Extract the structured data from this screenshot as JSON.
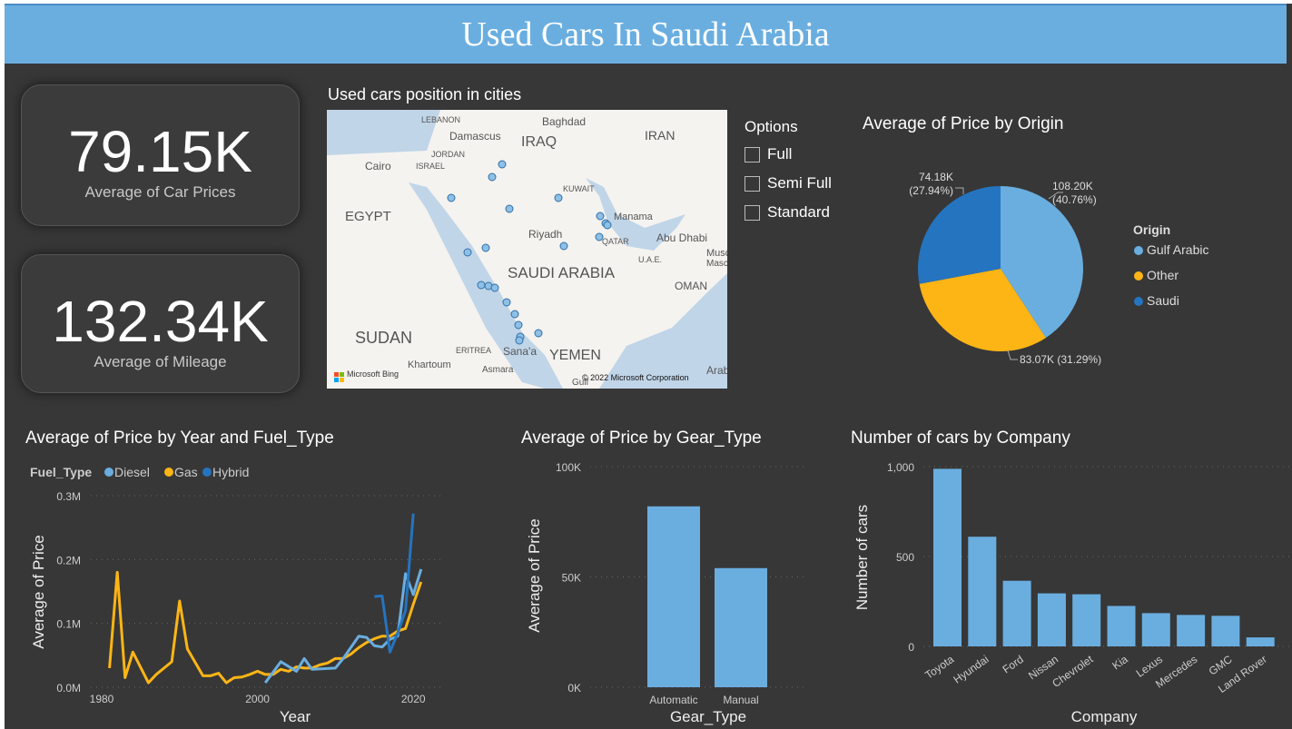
{
  "title": "Used Cars In Saudi Arabia",
  "kpis": [
    {
      "value": "79.15K",
      "label": "Average of Car Prices"
    },
    {
      "value": "132.34K",
      "label": "Average of Mileage"
    }
  ],
  "map": {
    "title": "Used cars position in cities",
    "labels": [
      "LEBANON",
      "Damascus",
      "Baghdad",
      "IRAQ",
      "IRAN",
      "JORDAN",
      "ISRAEL",
      "Cairo",
      "EGYPT",
      "KUWAIT",
      "Manama",
      "Riyadh",
      "QATAR",
      "Abu Dhabi",
      "U.A.E.",
      "Musc",
      "Masca",
      "SAUDI ARABIA",
      "OMAN",
      "SUDAN",
      "ERITREA",
      "Sana'a",
      "YEMEN",
      "Khartoum",
      "Asmara",
      "Arab",
      "Gulf"
    ],
    "attribution": "Microsoft Bing",
    "copyright": "© 2022 Microsoft Corporation"
  },
  "options": {
    "title": "Options",
    "items": [
      "Full",
      "Semi Full",
      "Standard"
    ]
  },
  "pie": {
    "title": "Average of Price by Origin",
    "legend_title": "Origin",
    "slices": [
      {
        "name": "Gulf Arabic",
        "value": 108.2,
        "label": "108.20K",
        "pct": "(40.76%)",
        "color": "#6aaee0"
      },
      {
        "name": "Other",
        "value": 83.07,
        "label": "83.07K (31.29%)",
        "pct": "",
        "color": "#fdb515"
      },
      {
        "name": "Saudi",
        "value": 74.18,
        "label": "74.18K",
        "pct": "(27.94%)",
        "color": "#2574bf"
      }
    ]
  },
  "chart_data": [
    {
      "type": "line",
      "title": "Average of Price by Year and Fuel_Type",
      "legend_title": "Fuel_Type",
      "xlabel": "Year",
      "ylabel": "Average of Price",
      "xlim": [
        1978,
        2023
      ],
      "ylim": [
        0,
        0.3
      ],
      "xticks": [
        "1980",
        "2000",
        "2020"
      ],
      "yticks": [
        "0.0M",
        "0.1M",
        "0.2M",
        "0.3M"
      ],
      "series": [
        {
          "name": "Diesel",
          "color": "#6aaee0",
          "points": [
            [
              2001,
              0.007
            ],
            [
              2003,
              0.04
            ],
            [
              2005,
              0.025
            ],
            [
              2006,
              0.045
            ],
            [
              2007,
              0.028
            ],
            [
              2010,
              0.03
            ],
            [
              2011,
              0.045
            ],
            [
              2013,
              0.08
            ],
            [
              2014,
              0.078
            ],
            [
              2015,
              0.065
            ],
            [
              2016,
              0.063
            ],
            [
              2017,
              0.075
            ],
            [
              2018,
              0.08
            ],
            [
              2019,
              0.178
            ],
            [
              2020,
              0.145
            ],
            [
              2021,
              0.185
            ]
          ]
        },
        {
          "name": "Gas",
          "color": "#fdb515",
          "points": [
            [
              1981,
              0.03
            ],
            [
              1982,
              0.18
            ],
            [
              1983,
              0.015
            ],
            [
              1984,
              0.055
            ],
            [
              1986,
              0.007
            ],
            [
              1987,
              0.02
            ],
            [
              1989,
              0.04
            ],
            [
              1990,
              0.135
            ],
            [
              1991,
              0.06
            ],
            [
              1993,
              0.018
            ],
            [
              1994,
              0.018
            ],
            [
              1995,
              0.022
            ],
            [
              1996,
              0.007
            ],
            [
              1997,
              0.015
            ],
            [
              1998,
              0.016
            ],
            [
              1999,
              0.02
            ],
            [
              2000,
              0.025
            ],
            [
              2001,
              0.02
            ],
            [
              2002,
              0.02
            ],
            [
              2003,
              0.028
            ],
            [
              2004,
              0.025
            ],
            [
              2005,
              0.032
            ],
            [
              2006,
              0.03
            ],
            [
              2007,
              0.03
            ],
            [
              2008,
              0.035
            ],
            [
              2009,
              0.038
            ],
            [
              2010,
              0.045
            ],
            [
              2011,
              0.045
            ],
            [
              2012,
              0.052
            ],
            [
              2013,
              0.062
            ],
            [
              2014,
              0.07
            ],
            [
              2015,
              0.076
            ],
            [
              2016,
              0.08
            ],
            [
              2017,
              0.08
            ],
            [
              2018,
              0.088
            ],
            [
              2019,
              0.092
            ],
            [
              2020,
              0.13
            ],
            [
              2021,
              0.165
            ]
          ]
        },
        {
          "name": "Hybrid",
          "color": "#2574bf",
          "points": [
            [
              2015,
              0.142
            ],
            [
              2016,
              0.143
            ],
            [
              2017,
              0.055
            ],
            [
              2018,
              0.085
            ],
            [
              2019,
              0.12
            ],
            [
              2020,
              0.272
            ]
          ]
        }
      ]
    },
    {
      "type": "bar",
      "title": "Average of Price by Gear_Type",
      "xlabel": "Gear_Type",
      "ylabel": "Average of Price",
      "categories": [
        "Automatic",
        "Manual"
      ],
      "values": [
        82000,
        54000
      ],
      "ylim": [
        0,
        100000
      ],
      "yticks": [
        "0K",
        "50K",
        "100K"
      ],
      "color": "#6aaee0"
    },
    {
      "type": "bar",
      "title": "Number of cars by Company",
      "xlabel": "Company",
      "ylabel": "Number of cars",
      "categories": [
        "Toyota",
        "Hyundai",
        "Ford",
        "Nissan",
        "Chevrolet",
        "Kia",
        "Lexus",
        "Mercedes",
        "GMC",
        "Land Rover"
      ],
      "values": [
        988,
        610,
        365,
        295,
        290,
        225,
        185,
        175,
        170,
        50
      ],
      "ylim": [
        0,
        1000
      ],
      "yticks": [
        "0",
        "500",
        "1,000"
      ],
      "color": "#6aaee0"
    }
  ]
}
